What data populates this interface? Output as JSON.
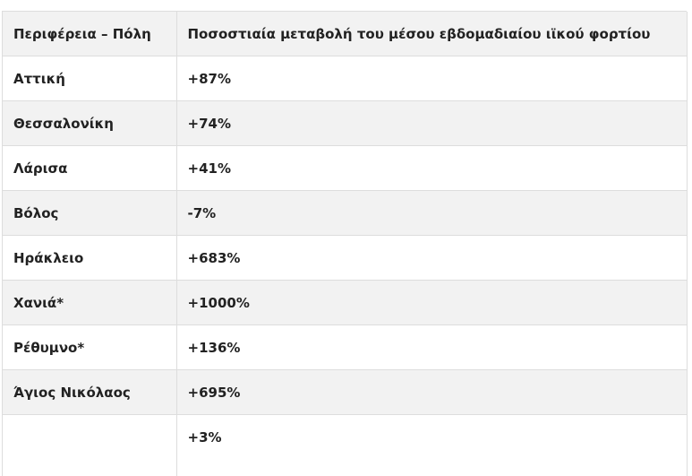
{
  "table": {
    "headers": [
      "Περιφέρεια – Πόλη",
      "Ποσοστιαία μεταβολή του μέσου εβδομαδιαίου ιϊκού φορτίου"
    ],
    "rows": [
      {
        "region": "Αττική",
        "change": "+87%"
      },
      {
        "region": "Θεσσαλονίκη",
        "change": "+74%"
      },
      {
        "region": "Λάρισα",
        "change": "+41%"
      },
      {
        "region": "Βόλος",
        "change": "-7%"
      },
      {
        "region": "Ηράκλειο",
        "change": "+683%"
      },
      {
        "region": "Χανιά*",
        "change": "+1000%"
      },
      {
        "region": "Ρέθυμνο*",
        "change": "+136%"
      },
      {
        "region": "Άγιος Νικόλαος",
        "change": "+695%"
      },
      {
        "region": "",
        "change": "+3%"
      }
    ]
  }
}
